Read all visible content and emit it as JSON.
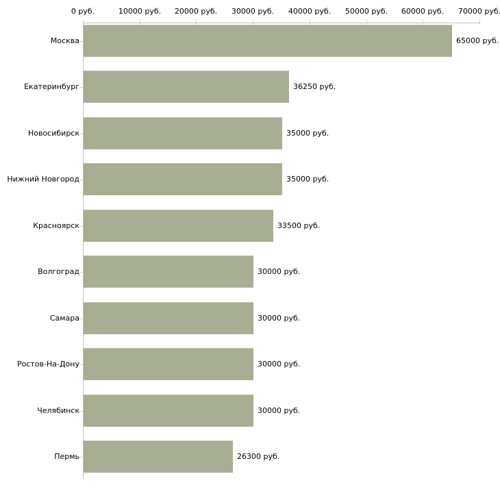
{
  "chart_data": {
    "type": "bar",
    "orientation": "horizontal",
    "title": "",
    "xlabel": "",
    "ylabel": "",
    "grid": false,
    "legend_position": "none",
    "categories": [
      "Москва",
      "Екатеринбург",
      "Новосибирск",
      "Нижний Новгород",
      "Красноярск",
      "Волгоград",
      "Самара",
      "Ростов-На-Дону",
      "Челябинск",
      "Пермь"
    ],
    "values": [
      65000,
      36250,
      35000,
      35000,
      33500,
      30000,
      30000,
      30000,
      30000,
      26300
    ],
    "value_labels": [
      "65000 руб.",
      "36250 руб.",
      "35000 руб.",
      "35000 руб.",
      "33500 руб.",
      "30000 руб.",
      "30000 руб.",
      "30000 руб.",
      "30000 руб.",
      "26300 руб."
    ],
    "xlim": [
      0,
      70000
    ],
    "x_tick_step": 10000,
    "x_tick_labels": [
      "0 руб.",
      "10000 руб.",
      "20000 руб.",
      "30000 руб.",
      "40000 руб.",
      "50000 руб.",
      "60000 руб.",
      "70000 руб."
    ],
    "colors": {
      "bar_fill": "#a8ae94",
      "bar_top_highlight": "#c2c7b1",
      "axis_line": "#c0c0c0",
      "tick_mark": "#cdd0a2",
      "text": "#000000",
      "background": "#ffffff"
    }
  }
}
